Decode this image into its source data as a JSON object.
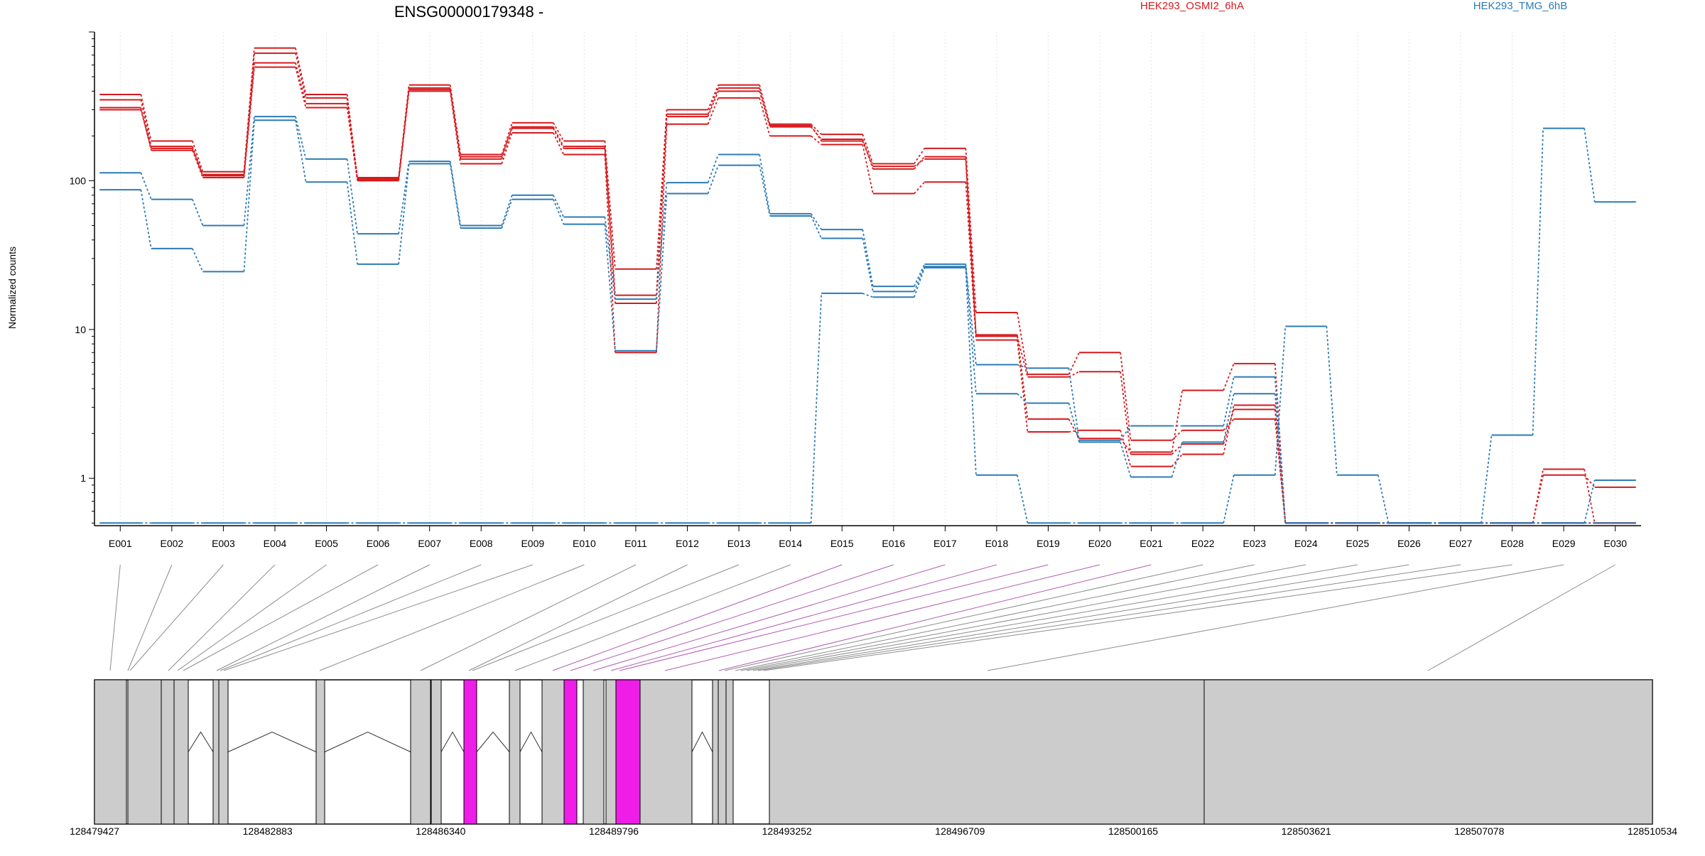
{
  "chart_data": {
    "type": "line",
    "title": "ENSG00000179348 -",
    "ylabel": "Normalized counts",
    "yscale": "log",
    "ylim": [
      0.48,
      1000
    ],
    "y_ticks": [
      {
        "label": "1",
        "value": 1
      },
      {
        "label": "10",
        "value": 10
      },
      {
        "label": "100",
        "value": 100
      }
    ],
    "categories": [
      "E001",
      "E002",
      "E003",
      "E004",
      "E005",
      "E006",
      "E007",
      "E008",
      "E009",
      "E010",
      "E011",
      "E012",
      "E013",
      "E014",
      "E015",
      "E016",
      "E017",
      "E018",
      "E019",
      "E020",
      "E021",
      "E022",
      "E023",
      "E024",
      "E025",
      "E026",
      "E027",
      "E028",
      "E029",
      "E030"
    ],
    "legend": [
      {
        "label": "HEK293_OSMI2_6hA",
        "color": "#d7191c"
      },
      {
        "label": "HEK293_TMG_6hB",
        "color": "#2c7bb6"
      }
    ],
    "series": [
      {
        "group": 0,
        "values": [
          380,
          185,
          115,
          780,
          380,
          105,
          440,
          150,
          245,
          185,
          25.5,
          300,
          440,
          240,
          205,
          130,
          165,
          13,
          5,
          7,
          1.8,
          2.1,
          2.5,
          0.5,
          0.5,
          0.5,
          0.5,
          0.5,
          1.15,
          0.5
        ]
      },
      {
        "group": 0,
        "values": [
          350,
          170,
          110,
          720,
          360,
          102,
          410,
          140,
          225,
          165,
          15,
          270,
          400,
          230,
          190,
          120,
          145,
          9,
          4.8,
          5.2,
          1.45,
          1.7,
          2.9,
          0.5,
          0.5,
          0.5,
          0.5,
          0.5,
          1.05,
          0.87
        ]
      },
      {
        "group": 0,
        "values": [
          310,
          160,
          105,
          580,
          310,
          100,
          400,
          130,
          210,
          150,
          7,
          240,
          360,
          200,
          175,
          82,
          98,
          8.5,
          2.05,
          2.1,
          1.2,
          1.45,
          3.1,
          0.5,
          0.5,
          0.5,
          0.5,
          0.5,
          0.5,
          0.5
        ]
      },
      {
        "group": 0,
        "values": [
          300,
          165,
          108,
          620,
          330,
          104,
          420,
          145,
          230,
          170,
          17,
          280,
          420,
          235,
          185,
          125,
          140,
          9.2,
          2.5,
          1.85,
          1.5,
          3.9,
          5.9,
          0.5,
          0.5,
          0.5,
          0.5,
          0.5,
          0.5,
          0.5
        ]
      },
      {
        "group": 1,
        "values": [
          113,
          75,
          50,
          270,
          140,
          44,
          135,
          50,
          80,
          57,
          16,
          97,
          150,
          60,
          47,
          19.5,
          27.5,
          5.8,
          5.5,
          1.8,
          2.25,
          2.25,
          4.8,
          0.5,
          0.5,
          0.5,
          0.5,
          0.5,
          0.5,
          0.97
        ]
      },
      {
        "group": 1,
        "values": [
          87,
          35,
          24.5,
          255,
          98,
          27.5,
          130,
          48,
          75,
          51,
          7.2,
          82,
          127,
          58,
          41,
          18,
          26.5,
          3.7,
          3.2,
          1.75,
          1.02,
          1.75,
          3.7,
          0.5,
          0.5,
          0.5,
          0.5,
          0.5,
          0.5,
          0.5
        ]
      },
      {
        "group": 1,
        "values": [
          0.5,
          0.5,
          0.5,
          0.5,
          0.5,
          0.5,
          0.5,
          0.5,
          0.5,
          0.5,
          0.5,
          0.5,
          0.5,
          0.5,
          17.5,
          16.5,
          26,
          1.05,
          0.5,
          0.5,
          0.5,
          0.5,
          1.05,
          10.5,
          1.05,
          0.5,
          0.5,
          1.95,
          225,
          72
        ]
      }
    ],
    "gene_model": {
      "coordinates": [
        "128479427",
        "128482883",
        "128486340",
        "128489796",
        "128493252",
        "128496709",
        "128500165",
        "128503621",
        "128507078",
        "128510534"
      ],
      "highlight_color": "#ee1ee8",
      "exon_color": "#cccccc"
    }
  }
}
